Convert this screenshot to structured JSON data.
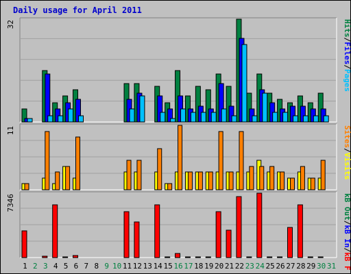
{
  "chart_data": [
    {
      "type": "bar",
      "title": "Daily usage for April 2011",
      "ymax_label": "32",
      "legend": [
        {
          "label": "Pages",
          "color": "#00c0ff"
        },
        {
          "label": "Files",
          "color": "#0000ff"
        },
        {
          "label": "Hits",
          "color": "#008040"
        }
      ],
      "categories": [
        "1",
        "2",
        "3",
        "4",
        "5",
        "6",
        "7",
        "8",
        "9",
        "10",
        "11",
        "12",
        "13",
        "14",
        "15",
        "16",
        "17",
        "18",
        "19",
        "20",
        "21",
        "22",
        "23",
        "24",
        "25",
        "26",
        "27",
        "28",
        "29",
        "30",
        "31"
      ],
      "weekend_days": [
        "2",
        "3",
        "9",
        "10",
        "16",
        "17",
        "23",
        "24",
        "30",
        "31"
      ],
      "series": [
        {
          "name": "Hits",
          "color": "#008040",
          "values": [
            4,
            0,
            16,
            6,
            8,
            10,
            0,
            0,
            0,
            0,
            12,
            12,
            0,
            11,
            6,
            16,
            8,
            11,
            10,
            15,
            11,
            32,
            9,
            15,
            9,
            7,
            6,
            8,
            6,
            9,
            0
          ]
        },
        {
          "name": "Files",
          "color": "#0000ff",
          "values": [
            1,
            0,
            15,
            4,
            6,
            7,
            0,
            0,
            0,
            0,
            7,
            9,
            0,
            8,
            4,
            8,
            4,
            5,
            4,
            12,
            5,
            26,
            4,
            10,
            6,
            4,
            5,
            5,
            4,
            4,
            0
          ]
        },
        {
          "name": "Pages",
          "color": "#00c0ff",
          "values": [
            1,
            0,
            2,
            2,
            4,
            2,
            0,
            0,
            0,
            0,
            4,
            8,
            0,
            3,
            1,
            4,
            3,
            3,
            3,
            4,
            2,
            24,
            2,
            9,
            3,
            3,
            2,
            2,
            2,
            2,
            0
          ]
        }
      ]
    },
    {
      "type": "bar",
      "ymax_label": "11",
      "legend": [
        {
          "label": "Visits",
          "color": "#ffff00"
        },
        {
          "label": "Sites",
          "color": "#ff8000"
        }
      ],
      "series": [
        {
          "name": "Visits",
          "color": "#ffff00",
          "values": [
            1,
            0,
            2,
            1,
            4,
            2,
            0,
            0,
            0,
            0,
            3,
            3,
            0,
            3,
            1,
            3,
            3,
            3,
            3,
            3,
            3,
            3,
            3,
            5,
            3,
            3,
            2,
            3,
            2,
            2,
            0
          ]
        },
        {
          "name": "Sites",
          "color": "#ff8000",
          "values": [
            1,
            0,
            10,
            3,
            4,
            9,
            0,
            0,
            0,
            0,
            5,
            5,
            0,
            7,
            1,
            11,
            3,
            3,
            3,
            10,
            3,
            10,
            4,
            4,
            4,
            3,
            2,
            4,
            2,
            5,
            0
          ]
        }
      ]
    },
    {
      "type": "bar",
      "ymax_label": "7346",
      "legend": [
        {
          "label": "kB F",
          "color": "#ff0000"
        },
        {
          "label": "kB In",
          "color": "#0000ff"
        },
        {
          "label": "kB Out",
          "color": "#008040"
        }
      ],
      "series": [
        {
          "name": "kB F",
          "color": "#ff0000",
          "values": [
            3065,
            0,
            170,
            6049,
            85,
            273,
            0,
            0,
            0,
            0,
            5265,
            4087,
            0,
            6049,
            85,
            480,
            85,
            85,
            85,
            5265,
            3150,
            6990,
            85,
            7346,
            85,
            85,
            3460,
            6049,
            85,
            85,
            0
          ]
        }
      ]
    }
  ]
}
